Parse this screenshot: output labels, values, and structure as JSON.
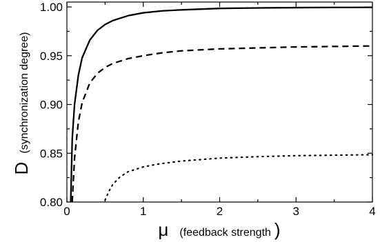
{
  "chart_data": {
    "type": "line",
    "title": "",
    "xlabel": {
      "symbol": "μ",
      "text": "(feedback strength",
      "close": ")"
    },
    "ylabel": {
      "symbol": "D",
      "text": "(synchronization degree)"
    },
    "xlim": [
      0,
      4
    ],
    "ylim": [
      0.8,
      1.005
    ],
    "xticks": [
      0,
      1,
      2,
      3,
      4
    ],
    "xtick_labels": [
      "0",
      "1",
      "2",
      "3",
      "4"
    ],
    "yticks": [
      0.8,
      0.85,
      0.9,
      0.95,
      1.0
    ],
    "ytick_labels": [
      "0.80",
      "0.85",
      "0.90",
      "0.95",
      "1.00"
    ],
    "grid": false,
    "series": [
      {
        "style": "solid",
        "x": [
          0.05,
          0.07,
          0.1,
          0.15,
          0.2,
          0.3,
          0.4,
          0.5,
          0.6,
          0.8,
          1.0,
          1.25,
          1.5,
          2.0,
          2.5,
          3.0,
          3.5,
          4.0
        ],
        "y": [
          0.8,
          0.865,
          0.9,
          0.93,
          0.948,
          0.966,
          0.976,
          0.982,
          0.986,
          0.991,
          0.994,
          0.996,
          0.997,
          0.9985,
          0.999,
          0.9993,
          0.9995,
          0.9996
        ]
      },
      {
        "style": "dashed",
        "x": [
          0.07,
          0.1,
          0.15,
          0.2,
          0.3,
          0.4,
          0.5,
          0.6,
          0.8,
          1.0,
          1.25,
          1.5,
          2.0,
          2.5,
          3.0,
          3.5,
          4.0
        ],
        "y": [
          0.8,
          0.845,
          0.882,
          0.902,
          0.922,
          0.932,
          0.938,
          0.942,
          0.947,
          0.95,
          0.953,
          0.955,
          0.957,
          0.958,
          0.959,
          0.9595,
          0.96
        ]
      },
      {
        "style": "dotted",
        "x": [
          0.5,
          0.55,
          0.6,
          0.7,
          0.8,
          1.0,
          1.2,
          1.5,
          2.0,
          2.5,
          3.0,
          3.5,
          4.0
        ],
        "y": [
          0.802,
          0.811,
          0.818,
          0.826,
          0.831,
          0.836,
          0.839,
          0.842,
          0.845,
          0.8465,
          0.8475,
          0.848,
          0.8485
        ]
      }
    ]
  }
}
